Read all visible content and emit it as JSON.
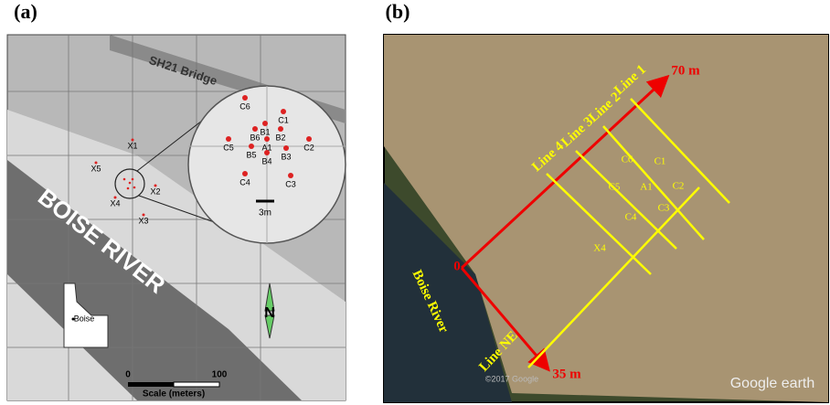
{
  "panel_a": {
    "label": "(a)",
    "bridge": "SH21 Bridge",
    "river": "BOISE RIVER",
    "inset_points": [
      "C6",
      "C1",
      "B1",
      "B6",
      "B2",
      "C5",
      "A1",
      "C2",
      "B5",
      "B4",
      "B3",
      "C4",
      "C3"
    ],
    "wells": [
      "X1",
      "X5",
      "X2",
      "X4",
      "X3"
    ],
    "inset_scale": "3m",
    "north": "N",
    "city": "Boise",
    "scale": {
      "ticks": [
        "0",
        "100"
      ],
      "title": "Scale (meters)"
    }
  },
  "panel_b": {
    "label": "(b)",
    "lines": [
      "Line 1",
      "Line 2",
      "Line 3",
      "Line 4"
    ],
    "line_ne": "Line NE",
    "river": "Boise River",
    "origin": "0",
    "end_long": "70 m",
    "end_short": "35 m",
    "points": [
      "C6",
      "C1",
      "C5",
      "A1",
      "C2",
      "C4",
      "C3",
      "X4"
    ],
    "credit": "©2017 Google",
    "brand": "Google earth"
  }
}
